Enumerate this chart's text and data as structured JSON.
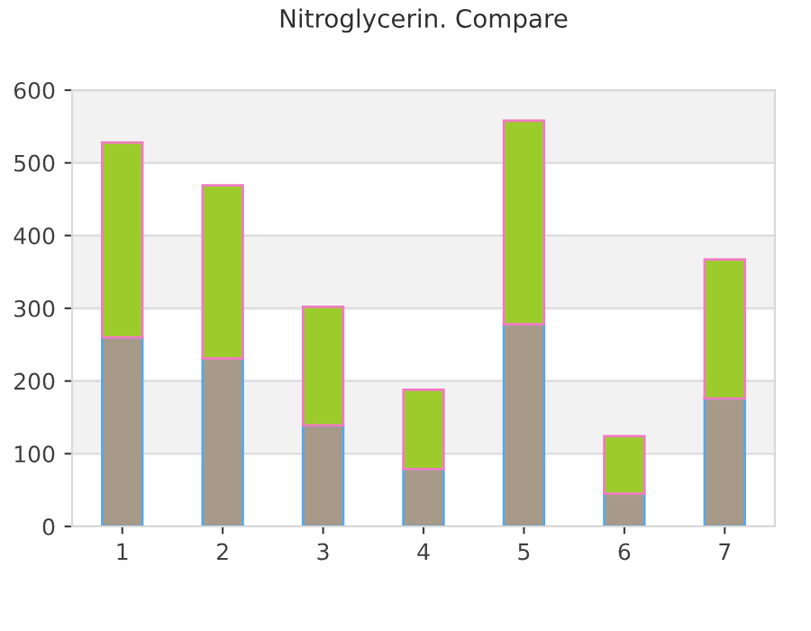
{
  "chart_data": {
    "type": "bar",
    "title": "Nitroglycerin. Compare",
    "categories": [
      "1",
      "2",
      "3",
      "4",
      "5",
      "6",
      "7"
    ],
    "stacked": true,
    "series": [
      {
        "color": "#a89a88",
        "values": [
          260,
          231,
          139,
          79,
          278,
          45,
          176
        ]
      },
      {
        "color": "#9ccc2c",
        "values": [
          268,
          238,
          163,
          109,
          280,
          79,
          191
        ]
      }
    ],
    "ylim": [
      0,
      600
    ],
    "yticks": [
      0,
      100,
      200,
      300,
      400,
      500,
      600
    ],
    "grid": "y",
    "legend": false,
    "bands": [
      {
        "axis": "y",
        "from": 100,
        "to": 200,
        "color": "#f2f2f2"
      },
      {
        "axis": "y",
        "from": 300,
        "to": 400,
        "color": "#f2f2f2"
      },
      {
        "axis": "y",
        "from": 500,
        "to": 600,
        "color": "#f2f2f2"
      }
    ]
  }
}
